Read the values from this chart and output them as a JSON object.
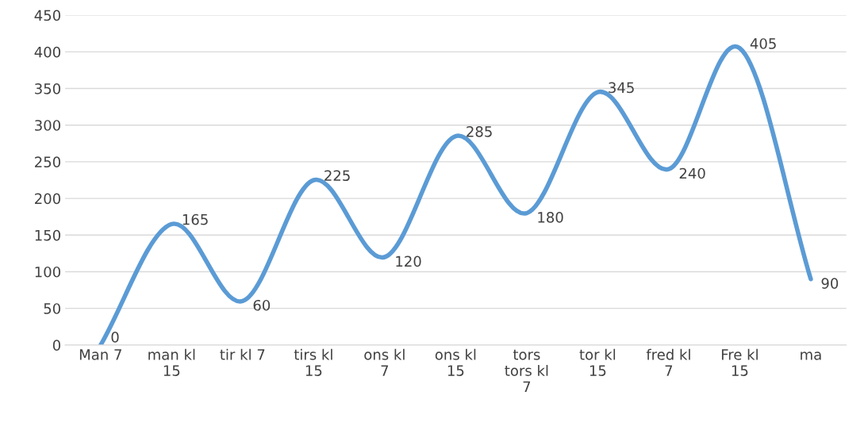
{
  "chart_data": {
    "type": "line",
    "categories": [
      "Man 7",
      "man kl\n15",
      "tir kl 7",
      "tirs kl\n15",
      "ons kl\n7",
      "ons kl\n15",
      "tors\ntors kl\n7",
      "tor kl\n15",
      "fred kl\n7",
      "Fre kl\n15",
      "ma"
    ],
    "series": [
      {
        "color": "#5b9bd5",
        "values": [
          0,
          165,
          60,
          225,
          120,
          285,
          180,
          345,
          240,
          405,
          90
        ]
      }
    ],
    "ylim": [
      0,
      450
    ],
    "yticks": [
      0,
      50,
      100,
      150,
      200,
      250,
      300,
      350,
      400,
      450
    ],
    "grid": "y",
    "data_labels": true,
    "marker": "none",
    "line_style": "solid"
  }
}
